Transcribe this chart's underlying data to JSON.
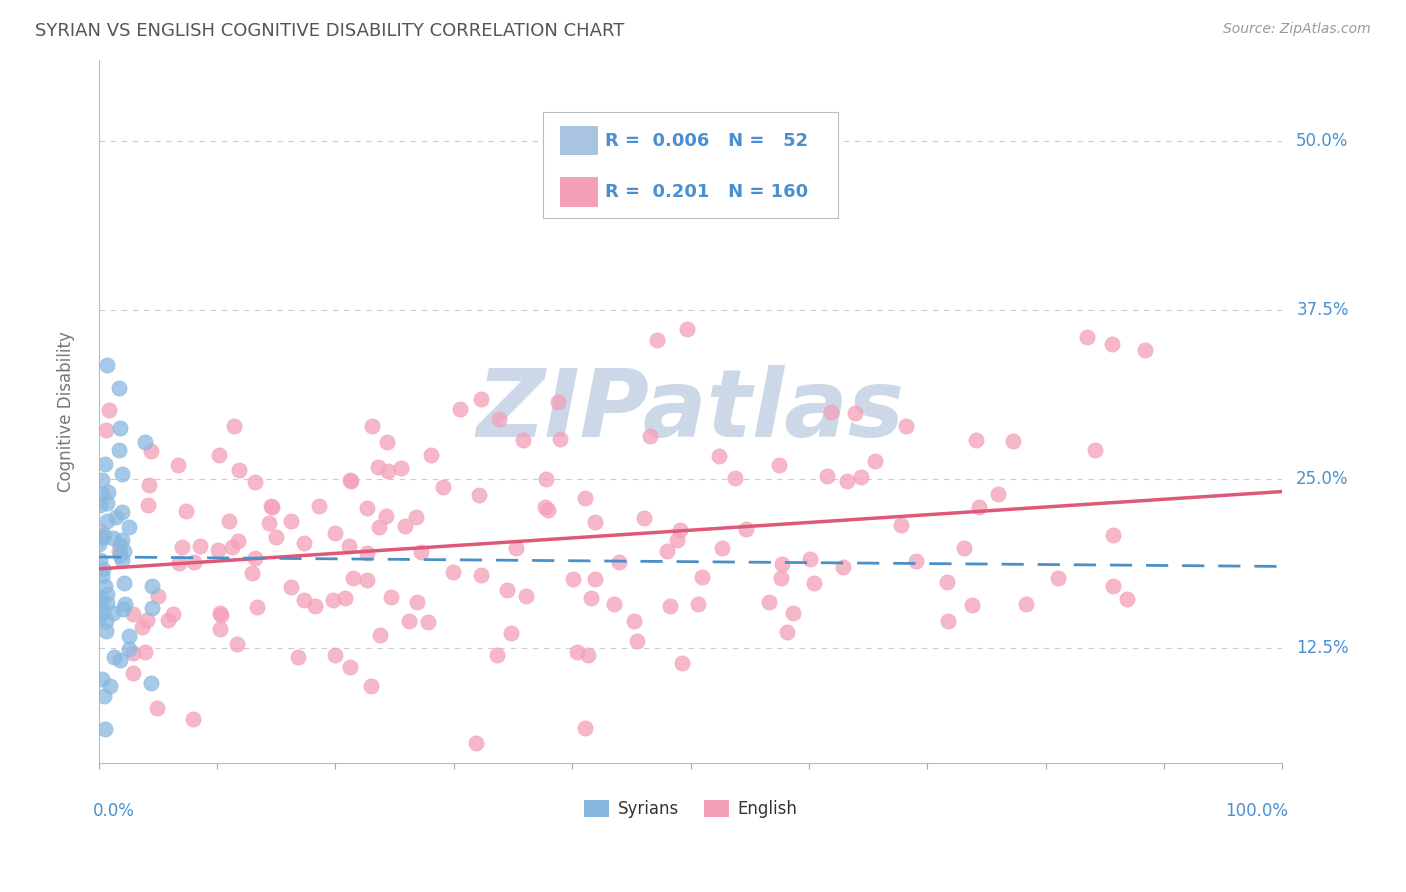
{
  "title": "SYRIAN VS ENGLISH COGNITIVE DISABILITY CORRELATION CHART",
  "source": "Source: ZipAtlas.com",
  "ylabel": "Cognitive Disability",
  "ytick_values": [
    0.125,
    0.25,
    0.375,
    0.5
  ],
  "ytick_labels": [
    "12.5%",
    "25.0%",
    "37.5%",
    "50.0%"
  ],
  "syrian_color": "#89b8df",
  "english_color": "#f4a0b8",
  "syrian_line_color": "#4a90c8",
  "english_line_color": "#e05878",
  "watermark_color": "#ccd8e8",
  "background_color": "#ffffff",
  "grid_color": "#cccccc",
  "title_color": "#555555",
  "axis_label_color": "#4a90d0",
  "legend_box_color": "#a8c4e0",
  "legend_pink_color": "#f4a0b8",
  "legend_R_syrian": "0.006",
  "legend_N_syrian": "52",
  "legend_R_english": "0.201",
  "legend_N_english": "160",
  "xmin": 0.0,
  "xmax": 1.0,
  "ymin": 0.04,
  "ymax": 0.56
}
